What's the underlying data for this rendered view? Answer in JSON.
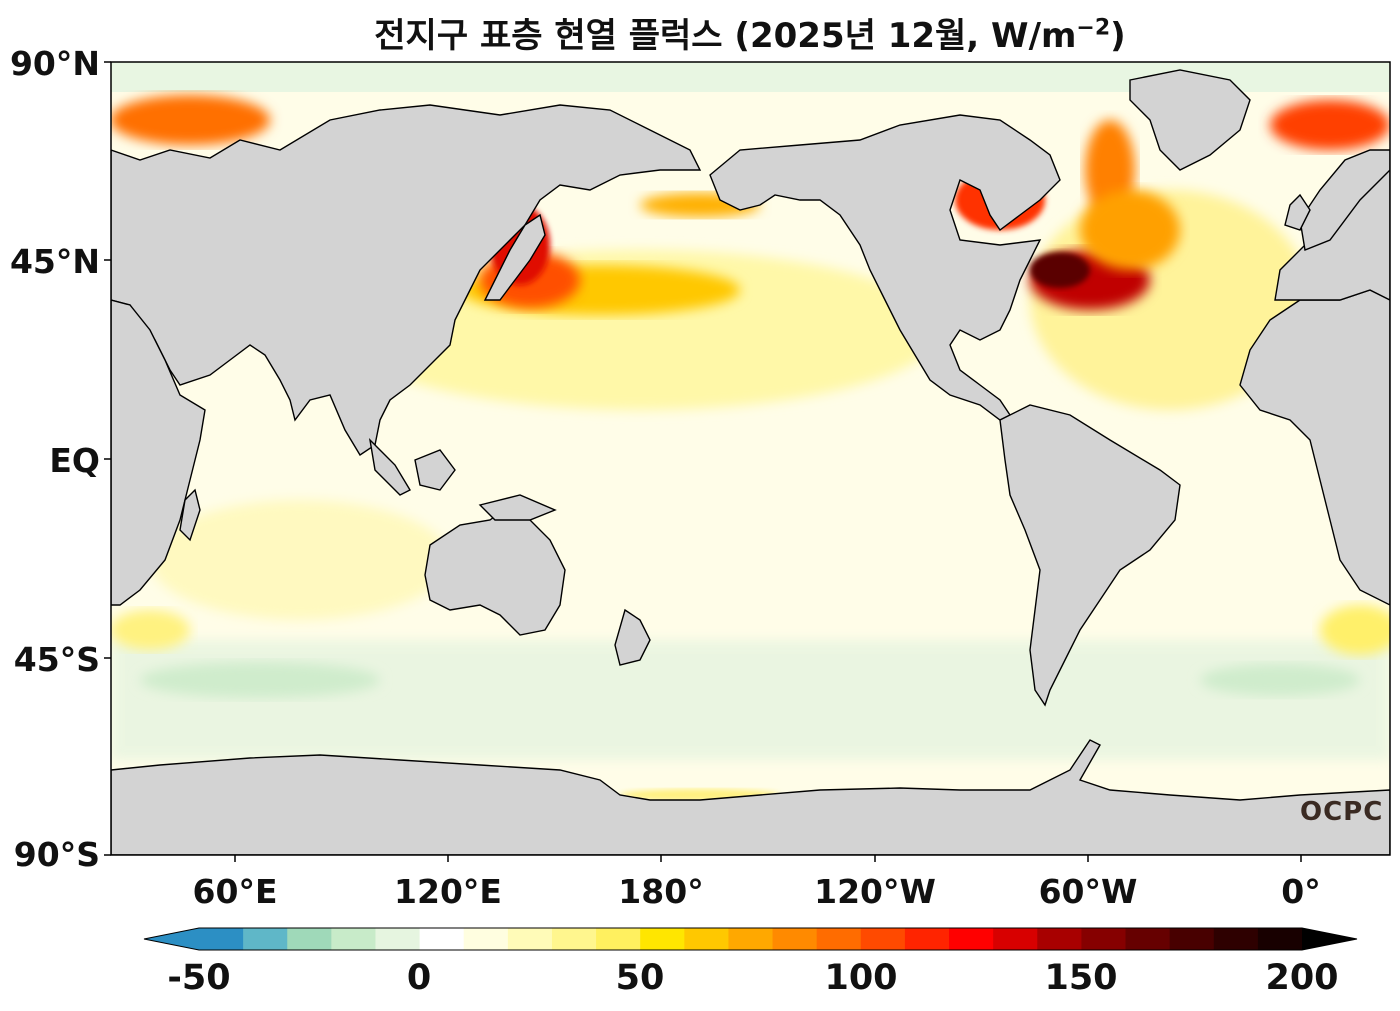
{
  "title": {
    "main": "전지구 표층 현열 플럭스 (2025년 12월, W/m",
    "exponent": "−2",
    "close": ")"
  },
  "lat_labels": [
    "90°N",
    "45°N",
    "EQ",
    "45°S",
    "90°S"
  ],
  "lon_labels": [
    "60°E",
    "120°E",
    "180°",
    "120°W",
    "60°W",
    "0°"
  ],
  "colorbar": {
    "tick_labels": [
      "-50",
      "0",
      "50",
      "100",
      "150",
      "200"
    ],
    "min": -50,
    "max": 200,
    "step": 10,
    "under_color": "#2c8fc4",
    "over_color": "#000000",
    "colors": [
      "#2c8fc4",
      "#5fb7c8",
      "#9fd9b9",
      "#c8ebc9",
      "#e6f5e0",
      "#ffffff",
      "#fffee0",
      "#fffbb8",
      "#fff68e",
      "#fff05f",
      "#ffe600",
      "#ffc800",
      "#ffa800",
      "#ff8a00",
      "#ff6c00",
      "#ff4a00",
      "#ff2400",
      "#ff0000",
      "#d80000",
      "#a80000",
      "#860000",
      "#660000",
      "#480000",
      "#2e0000",
      "#180000"
    ]
  },
  "colors": {
    "land": "#d3d3d3",
    "ocean_base": "#fffde8",
    "coast": "#000000"
  },
  "watermark": "OCPC"
}
